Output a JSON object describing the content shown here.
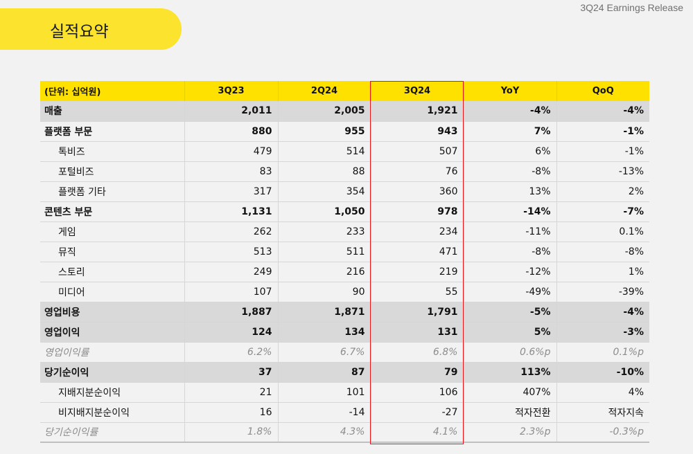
{
  "header": {
    "title": "실적요약",
    "release_label": "3Q24 Earnings Release"
  },
  "table": {
    "columns": [
      "(단위: 십억원)",
      "3Q23",
      "2Q24",
      "3Q24",
      "YoY",
      "QoQ"
    ],
    "rows": [
      {
        "label": "매출",
        "values": [
          "2,011",
          "2,005",
          "1,921",
          "-4%",
          "-4%"
        ]
      },
      {
        "label": "플랫폼 부문",
        "values": [
          "880",
          "955",
          "943",
          "7%",
          "-1%"
        ]
      },
      {
        "label": "톡비즈",
        "values": [
          "479",
          "514",
          "507",
          "6%",
          "-1%"
        ]
      },
      {
        "label": "포털비즈",
        "values": [
          "83",
          "88",
          "76",
          "-8%",
          "-13%"
        ]
      },
      {
        "label": "플랫폼 기타",
        "values": [
          "317",
          "354",
          "360",
          "13%",
          "2%"
        ]
      },
      {
        "label": "콘텐츠 부문",
        "values": [
          "1,131",
          "1,050",
          "978",
          "-14%",
          "-7%"
        ]
      },
      {
        "label": "게임",
        "values": [
          "262",
          "233",
          "234",
          "-11%",
          "0.1%"
        ]
      },
      {
        "label": "뮤직",
        "values": [
          "513",
          "511",
          "471",
          "-8%",
          "-8%"
        ]
      },
      {
        "label": "스토리",
        "values": [
          "249",
          "216",
          "219",
          "-12%",
          "1%"
        ]
      },
      {
        "label": "미디어",
        "values": [
          "107",
          "90",
          "55",
          "-49%",
          "-39%"
        ]
      },
      {
        "label": "영업비용",
        "values": [
          "1,887",
          "1,871",
          "1,791",
          "-5%",
          "-4%"
        ]
      },
      {
        "label": "영업이익",
        "values": [
          "124",
          "134",
          "131",
          "5%",
          "-3%"
        ]
      },
      {
        "label": "영업이익률",
        "values": [
          "6.2%",
          "6.7%",
          "6.8%",
          "0.6%p",
          "0.1%p"
        ]
      },
      {
        "label": "당기순이익",
        "values": [
          "37",
          "87",
          "79",
          "113%",
          "-10%"
        ]
      },
      {
        "label": "지배지분순이익",
        "values": [
          "21",
          "101",
          "106",
          "407%",
          "4%"
        ]
      },
      {
        "label": "비지배지분순이익",
        "values": [
          "16",
          "-14",
          "-27",
          "적자전환",
          "적자지속"
        ]
      },
      {
        "label": "당기순이익률",
        "values": [
          "1.8%",
          "4.3%",
          "4.1%",
          "2.3%p",
          "-0.3%p"
        ]
      }
    ]
  },
  "colors": {
    "accent_yellow": "#ffe100",
    "title_pill": "#fbe32e",
    "highlight_red": "#e8161b",
    "shade_gray": "#d9d9d9"
  }
}
